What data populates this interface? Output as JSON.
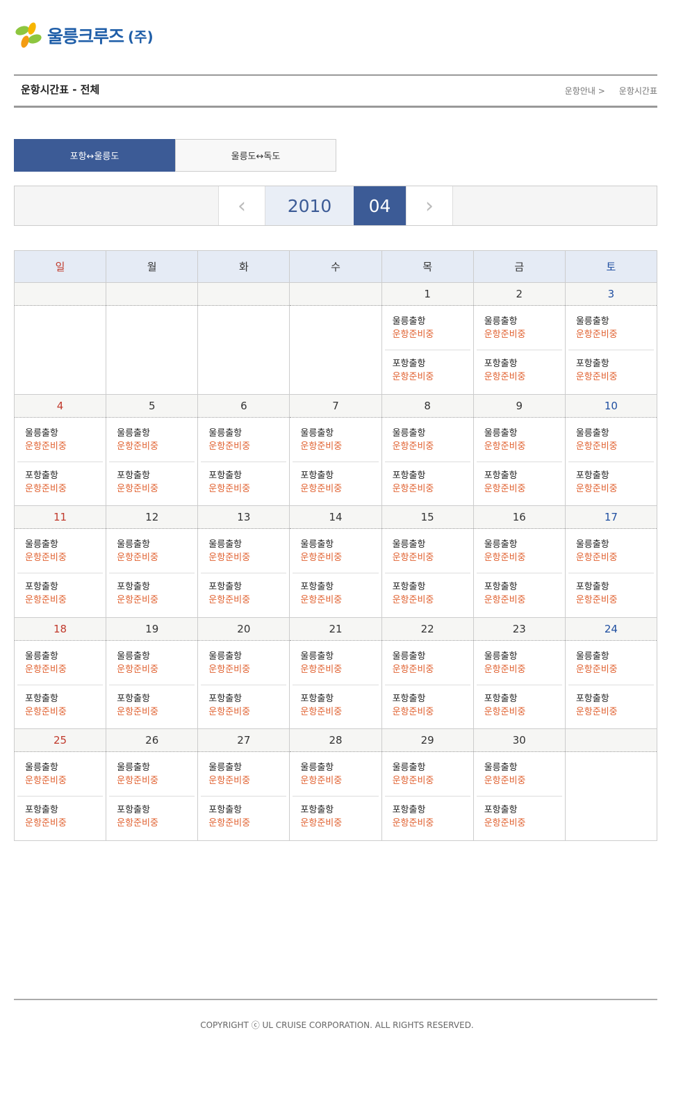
{
  "brand": {
    "name": "울릉크루즈",
    "suffix": "(주)"
  },
  "header": {
    "title": "운항시간표 - 전체",
    "breadcrumb": [
      "운항안내 >",
      "운항시간표"
    ]
  },
  "tabs": [
    {
      "label": "포항↔울릉도",
      "active": true
    },
    {
      "label": "울릉도↔독도",
      "active": false
    }
  ],
  "nav": {
    "prev": "‹",
    "next": "›",
    "year": "2010",
    "month": "04"
  },
  "calendar": {
    "weekdays": [
      "일",
      "월",
      "화",
      "수",
      "목",
      "금",
      "토"
    ],
    "weeks": [
      [
        null,
        null,
        null,
        null,
        1,
        2,
        3
      ],
      [
        4,
        5,
        6,
        7,
        8,
        9,
        10
      ],
      [
        11,
        12,
        13,
        14,
        15,
        16,
        17
      ],
      [
        18,
        19,
        20,
        21,
        22,
        23,
        24
      ],
      [
        25,
        26,
        27,
        28,
        29,
        30,
        null
      ]
    ],
    "entries": [
      {
        "label": "울릉출항",
        "status": "운항준비중"
      },
      {
        "label": "포항출항",
        "status": "운항준비중"
      }
    ]
  },
  "colors": {
    "accent": "#3c5b96",
    "status": "#e0602f",
    "sunday": "#c0392b",
    "saturday": "#1f4ea0"
  },
  "footer": {
    "copyright": "COPYRIGHT ⓒ UL CRUISE CORPORATION. ALL RIGHTS RESERVED."
  }
}
